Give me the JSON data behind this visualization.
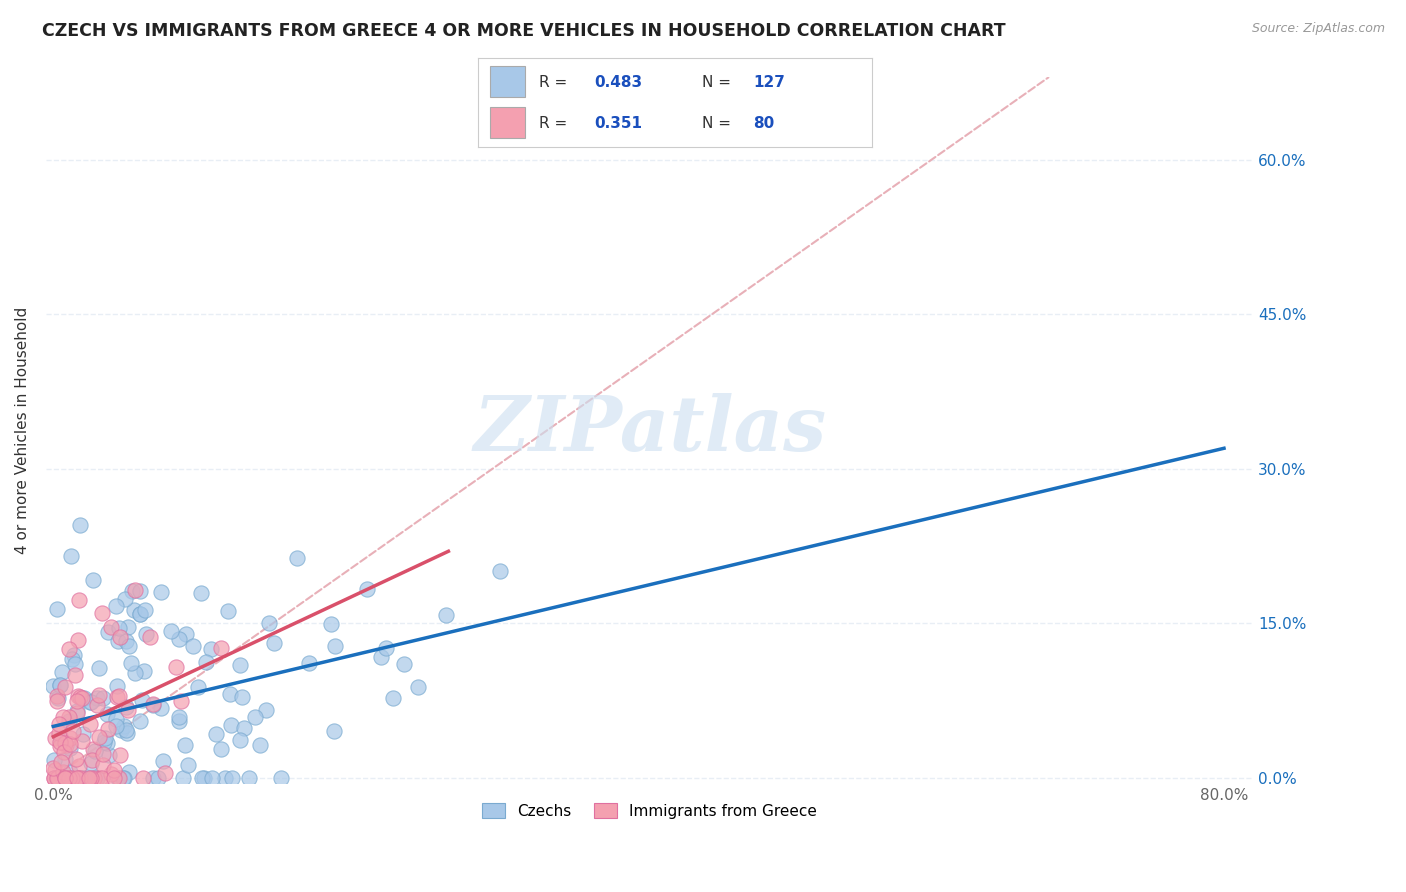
{
  "title": "CZECH VS IMMIGRANTS FROM GREECE 4 OR MORE VEHICLES IN HOUSEHOLD CORRELATION CHART",
  "source": "Source: ZipAtlas.com",
  "ylabel": "4 or more Vehicles in Household",
  "czech_R": 0.483,
  "czech_N": 127,
  "greece_R": 0.351,
  "greece_N": 80,
  "xlim": [
    -0.005,
    0.82
  ],
  "ylim": [
    -0.005,
    0.68
  ],
  "xtick_vals": [
    0.0,
    0.1,
    0.2,
    0.3,
    0.4,
    0.5,
    0.6,
    0.7,
    0.8
  ],
  "xtick_labels": [
    "0.0%",
    "",
    "",
    "",
    "",
    "",
    "",
    "",
    "80.0%"
  ],
  "ytick_vals": [
    0.0,
    0.15,
    0.3,
    0.45,
    0.6
  ],
  "ytick_labels": [
    "0.0%",
    "15.0%",
    "30.0%",
    "45.0%",
    "60.0%"
  ],
  "czech_color": "#a8c8e8",
  "greece_color": "#f4a0b0",
  "czech_line_color": "#1a6fbd",
  "greece_line_color": "#d9506a",
  "diagonal_color": "#e8b0b8",
  "grid_color": "#e8eef5",
  "background_color": "#ffffff",
  "watermark": "ZIPatlas",
  "legend_R_N_color": "#1a4fbd",
  "legend_text_color": "#333333"
}
